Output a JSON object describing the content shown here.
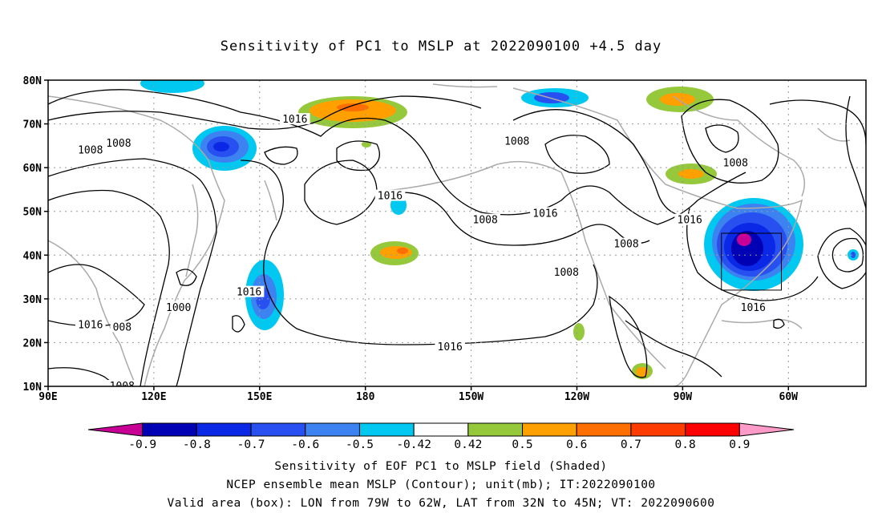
{
  "title": "Sensitivity of PC1 to MSLP at 2022090100 +4.5 day",
  "map": {
    "lat_labels": [
      "80N",
      "70N",
      "60N",
      "50N",
      "40N",
      "30N",
      "20N",
      "10N"
    ],
    "lon_labels": [
      "90E",
      "120E",
      "150E",
      "180",
      "150W",
      "120W",
      "90W",
      "60W"
    ],
    "lat_values": [
      80,
      70,
      60,
      50,
      40,
      30,
      20,
      10
    ],
    "lon_values": [
      90,
      120,
      150,
      180,
      210,
      240,
      270,
      300
    ],
    "lon_range": [
      90,
      322
    ],
    "lat_range": [
      10,
      80
    ],
    "grid": "dotted",
    "valid_box": {
      "lon": [
        281,
        298
      ],
      "lat": [
        32,
        45
      ]
    },
    "contour_labels": [
      {
        "text": "1016",
        "lon": 160,
        "lat": 71
      },
      {
        "text": "1008",
        "lon": 102,
        "lat": 64
      },
      {
        "text": "1008",
        "lon": 110,
        "lat": 65.5
      },
      {
        "text": "1008",
        "lon": 223,
        "lat": 66
      },
      {
        "text": "1016",
        "lon": 187,
        "lat": 53.5
      },
      {
        "text": "1008",
        "lon": 214,
        "lat": 48
      },
      {
        "text": "1016",
        "lon": 231,
        "lat": 49.5
      },
      {
        "text": "1008",
        "lon": 254,
        "lat": 42.5
      },
      {
        "text": "1016",
        "lon": 272,
        "lat": 48
      },
      {
        "text": "1008",
        "lon": 285,
        "lat": 61
      },
      {
        "text": "1008",
        "lon": 237,
        "lat": 36
      },
      {
        "text": "1016",
        "lon": 147,
        "lat": 31.5
      },
      {
        "text": "1000",
        "lon": 127,
        "lat": 28
      },
      {
        "text": "1016",
        "lon": 102,
        "lat": 24
      },
      {
        "text": "008",
        "lon": 111,
        "lat": 23.5
      },
      {
        "text": "1016",
        "lon": 204,
        "lat": 19
      },
      {
        "text": "1016",
        "lon": 290,
        "lat": 28
      },
      {
        "text": "1008",
        "lon": 111,
        "lat": 10
      }
    ]
  },
  "colorbar": {
    "labels": [
      "-0.9",
      "-0.8",
      "-0.7",
      "-0.6",
      "-0.5",
      "-0.42",
      "0.42",
      "0.5",
      "0.6",
      "0.7",
      "0.8",
      "0.9"
    ],
    "colors": [
      "#c80096",
      "#0000b4",
      "#0a28e6",
      "#2850f0",
      "#3c82f0",
      "#00c8f0",
      "#ffffff",
      "#96c83c",
      "#ffa000",
      "#ff6e00",
      "#ff3c00",
      "#ff0000",
      "#ff9bc8"
    ]
  },
  "footer": {
    "line1": "Sensitivity of EOF PC1 to MSLP field (Shaded)",
    "line2": "NCEP ensemble mean MSLP (Contour); unit(mb); IT:2022090100",
    "line3": "Valid area (box): LON from 79W to 62W, LAT from 32N to 45N; VT: 2022090600"
  }
}
